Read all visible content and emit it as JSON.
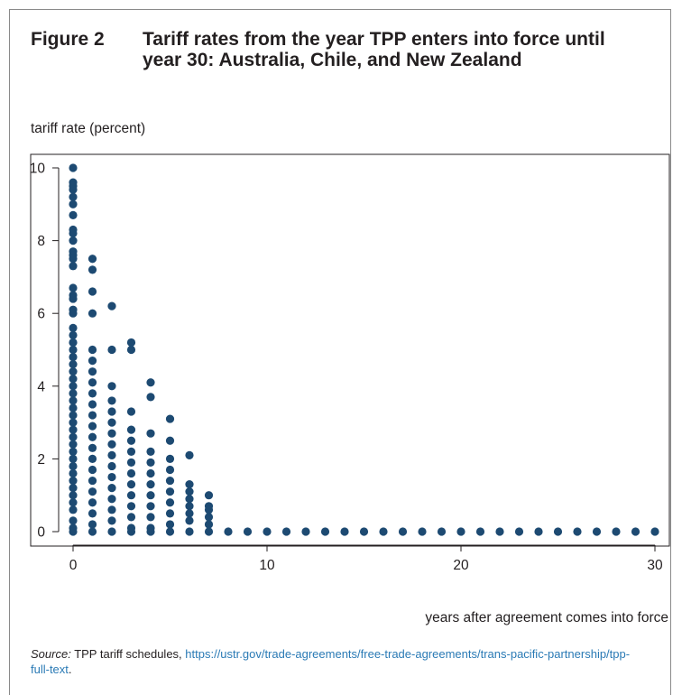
{
  "figure": {
    "number": "Figure 2",
    "title": "Tariff rates from the year TPP enters into force until year 30: Australia, Chile, and New Zealand"
  },
  "source": {
    "lead": "Source:",
    "text": " TPP tariff schedules, ",
    "link": "https://ustr.gov/trade-agreements/free-trade-agreements/trans-pacific-partnership/tpp-full-text",
    "trail": "."
  },
  "colors": {
    "marker": "#1d4a72",
    "axis": "#231f20",
    "link": "#2a7ab5"
  },
  "chart_data": {
    "type": "scatter",
    "title": "Tariff rates from the year TPP enters into force until year 30: Australia, Chile, and New Zealand",
    "xlabel": "years after agreement comes into force",
    "ylabel": "tariff rate (percent)",
    "xlim": [
      0,
      30
    ],
    "ylim": [
      0,
      10
    ],
    "xticks": [
      0,
      10,
      20,
      30
    ],
    "yticks": [
      0,
      2,
      4,
      6,
      8,
      10
    ],
    "grid": false,
    "legend": "none",
    "series": [
      {
        "points": [
          [
            0,
            10
          ],
          [
            0,
            9.6
          ],
          [
            0,
            9.5
          ],
          [
            0,
            9.4
          ],
          [
            0,
            9.2
          ],
          [
            0,
            9.0
          ],
          [
            0,
            8.7
          ],
          [
            0,
            8.3
          ],
          [
            0,
            8.2
          ],
          [
            0,
            8.0
          ],
          [
            0,
            7.7
          ],
          [
            0,
            7.6
          ],
          [
            0,
            7.5
          ],
          [
            0,
            7.3
          ],
          [
            0,
            6.7
          ],
          [
            0,
            6.5
          ],
          [
            0,
            6.4
          ],
          [
            0,
            6.1
          ],
          [
            0,
            6.0
          ],
          [
            0,
            5.6
          ],
          [
            0,
            5.4
          ],
          [
            0,
            5.2
          ],
          [
            0,
            5.0
          ],
          [
            0,
            4.8
          ],
          [
            0,
            4.6
          ],
          [
            0,
            4.4
          ],
          [
            0,
            4.2
          ],
          [
            0,
            4.0
          ],
          [
            0,
            3.8
          ],
          [
            0,
            3.6
          ],
          [
            0,
            3.4
          ],
          [
            0,
            3.2
          ],
          [
            0,
            3.0
          ],
          [
            0,
            2.8
          ],
          [
            0,
            2.6
          ],
          [
            0,
            2.4
          ],
          [
            0,
            2.2
          ],
          [
            0,
            2.0
          ],
          [
            0,
            1.8
          ],
          [
            0,
            1.6
          ],
          [
            0,
            1.4
          ],
          [
            0,
            1.2
          ],
          [
            0,
            1.0
          ],
          [
            0,
            0.8
          ],
          [
            0,
            0.6
          ],
          [
            0,
            0.3
          ],
          [
            0,
            0.1
          ],
          [
            0,
            0
          ],
          [
            1,
            7.5
          ],
          [
            1,
            7.2
          ],
          [
            1,
            6.6
          ],
          [
            1,
            6.0
          ],
          [
            1,
            5.0
          ],
          [
            1,
            4.7
          ],
          [
            1,
            4.4
          ],
          [
            1,
            4.1
          ],
          [
            1,
            3.8
          ],
          [
            1,
            3.5
          ],
          [
            1,
            3.2
          ],
          [
            1,
            2.9
          ],
          [
            1,
            2.6
          ],
          [
            1,
            2.3
          ],
          [
            1,
            2.0
          ],
          [
            1,
            1.7
          ],
          [
            1,
            1.4
          ],
          [
            1,
            1.1
          ],
          [
            1,
            0.8
          ],
          [
            1,
            0.5
          ],
          [
            1,
            0.2
          ],
          [
            1,
            0
          ],
          [
            2,
            6.2
          ],
          [
            2,
            5.0
          ],
          [
            2,
            4.0
          ],
          [
            2,
            3.6
          ],
          [
            2,
            3.3
          ],
          [
            2,
            3.0
          ],
          [
            2,
            2.7
          ],
          [
            2,
            2.4
          ],
          [
            2,
            2.1
          ],
          [
            2,
            1.8
          ],
          [
            2,
            1.5
          ],
          [
            2,
            1.2
          ],
          [
            2,
            0.9
          ],
          [
            2,
            0.6
          ],
          [
            2,
            0.3
          ],
          [
            2,
            0
          ],
          [
            3,
            5.2
          ],
          [
            3,
            5.0
          ],
          [
            3,
            3.3
          ],
          [
            3,
            2.8
          ],
          [
            3,
            2.5
          ],
          [
            3,
            2.2
          ],
          [
            3,
            1.9
          ],
          [
            3,
            1.6
          ],
          [
            3,
            1.3
          ],
          [
            3,
            1.0
          ],
          [
            3,
            0.7
          ],
          [
            3,
            0.4
          ],
          [
            3,
            0.1
          ],
          [
            3,
            0
          ],
          [
            4,
            4.1
          ],
          [
            4,
            3.7
          ],
          [
            4,
            2.7
          ],
          [
            4,
            2.2
          ],
          [
            4,
            1.9
          ],
          [
            4,
            1.6
          ],
          [
            4,
            1.3
          ],
          [
            4,
            1.0
          ],
          [
            4,
            0.7
          ],
          [
            4,
            0.4
          ],
          [
            4,
            0.1
          ],
          [
            4,
            0
          ],
          [
            5,
            3.1
          ],
          [
            5,
            2.5
          ],
          [
            5,
            2.0
          ],
          [
            5,
            1.7
          ],
          [
            5,
            1.4
          ],
          [
            5,
            1.1
          ],
          [
            5,
            0.8
          ],
          [
            5,
            0.5
          ],
          [
            5,
            0.2
          ],
          [
            5,
            0
          ],
          [
            6,
            2.1
          ],
          [
            6,
            1.3
          ],
          [
            6,
            1.1
          ],
          [
            6,
            0.9
          ],
          [
            6,
            0.7
          ],
          [
            6,
            0.5
          ],
          [
            6,
            0.3
          ],
          [
            6,
            0
          ],
          [
            7,
            1.0
          ],
          [
            7,
            0.7
          ],
          [
            7,
            0.6
          ],
          [
            7,
            0.4
          ],
          [
            7,
            0.2
          ],
          [
            7,
            0
          ],
          [
            8,
            0
          ],
          [
            9,
            0
          ],
          [
            10,
            0
          ],
          [
            11,
            0
          ],
          [
            12,
            0
          ],
          [
            13,
            0
          ],
          [
            14,
            0
          ],
          [
            15,
            0
          ],
          [
            16,
            0
          ],
          [
            17,
            0
          ],
          [
            18,
            0
          ],
          [
            19,
            0
          ],
          [
            20,
            0
          ],
          [
            21,
            0
          ],
          [
            22,
            0
          ],
          [
            23,
            0
          ],
          [
            24,
            0
          ],
          [
            25,
            0
          ],
          [
            26,
            0
          ],
          [
            27,
            0
          ],
          [
            28,
            0
          ],
          [
            29,
            0
          ],
          [
            30,
            0
          ]
        ]
      }
    ]
  }
}
